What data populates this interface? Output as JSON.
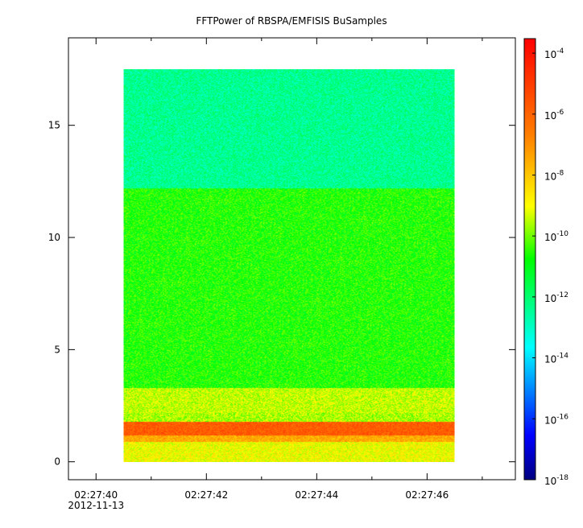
{
  "chart_data": {
    "type": "heatmap",
    "title": "FFTPower of RBSPA/EMFISIS  BuSamples",
    "xlabel": "",
    "ylabel": "",
    "x_start": "2012-11-13T02:27:40.5",
    "x_end": "2012-11-13T02:27:46.5",
    "x_range": [
      "02:27:39.5",
      "02:27:47.6"
    ],
    "x_ticks": [
      {
        "label": "02:27:40",
        "sublabel": "2012-11-13"
      },
      {
        "label": "02:27:42"
      },
      {
        "label": "02:27:44"
      },
      {
        "label": "02:27:46"
      }
    ],
    "x_minor_ticks_s": [
      41,
      43,
      45,
      47
    ],
    "y_range": [
      -0.8,
      18.9
    ],
    "y_ticks": [
      0,
      5,
      10,
      15
    ],
    "y_extent": [
      0,
      17.5
    ],
    "colorbar": {
      "scale": "log",
      "range": [
        "1e-18",
        "3e-4"
      ],
      "ticks": [
        {
          "base": "10",
          "exp": "-4"
        },
        {
          "base": "10",
          "exp": "-6"
        },
        {
          "base": "10",
          "exp": "-8"
        },
        {
          "base": "10",
          "exp": "-10"
        },
        {
          "base": "10",
          "exp": "-12"
        },
        {
          "base": "10",
          "exp": "-14"
        },
        {
          "base": "10",
          "exp": "-16"
        },
        {
          "base": "10",
          "exp": "-18"
        }
      ],
      "colormap": [
        "#00007f",
        "#0000ff",
        "#00ffff",
        "#00ff00",
        "#ffff00",
        "#ff7f00",
        "#ff0000"
      ]
    },
    "frequency_bands": [
      {
        "y_from": 0,
        "y_to": 0.9,
        "log10_power": -9.0
      },
      {
        "y_from": 0.9,
        "y_to": 1.2,
        "log10_power": -7.5
      },
      {
        "y_from": 1.2,
        "y_to": 1.8,
        "log10_power": -5.8
      },
      {
        "y_from": 1.8,
        "y_to": 2.2,
        "log10_power": -9.6
      },
      {
        "y_from": 2.2,
        "y_to": 3.3,
        "log10_power": -9.4
      },
      {
        "y_from": 3.3,
        "y_to": 12.2,
        "log10_power": -10.6
      },
      {
        "y_from": 12.2,
        "y_to": 17.5,
        "log10_power": -12.4
      }
    ]
  }
}
